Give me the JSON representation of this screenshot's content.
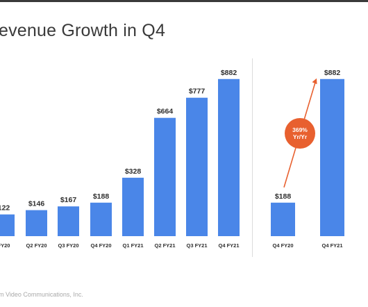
{
  "page": {
    "title": "evenue Growth in Q4",
    "footer": "m Video Communications, Inc."
  },
  "chart_data": [
    {
      "type": "bar",
      "categories": [
        "FY20",
        "Q2 FY20",
        "Q3 FY20",
        "Q4 FY20",
        "Q1 FY21",
        "Q2 FY21",
        "Q3 FY21",
        "Q4 FY21"
      ],
      "values": [
        122,
        146,
        167,
        188,
        328,
        664,
        777,
        882
      ],
      "data_labels": [
        "122",
        "$146",
        "$167",
        "$188",
        "$328",
        "$664",
        "$777",
        "$882"
      ],
      "title": "",
      "xlabel": "",
      "ylabel": "",
      "ylim": [
        0,
        950
      ],
      "color": "#4a86e8",
      "grid": false
    },
    {
      "type": "bar",
      "categories": [
        "Q4 FY20",
        "Q4 FY21"
      ],
      "values": [
        188,
        882
      ],
      "data_labels": [
        "$188",
        "$882"
      ],
      "title": "",
      "xlabel": "",
      "ylabel": "",
      "ylim": [
        0,
        950
      ],
      "color": "#4a86e8",
      "grid": false,
      "annotation": {
        "line1": "369%",
        "line2": "Yr/Yr",
        "color": "#e8602f"
      }
    }
  ]
}
